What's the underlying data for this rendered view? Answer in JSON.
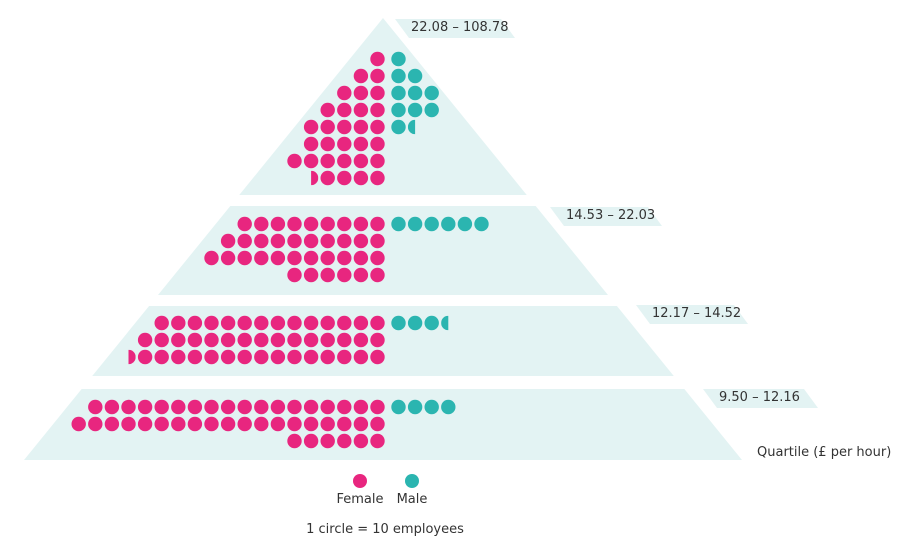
{
  "chart_data": {
    "type": "pictogram-pyramid",
    "axis_title": "Quartile (£ per hour)",
    "unit_note": "1 circle = 10 employees",
    "colors": {
      "female": "#e8267f",
      "male": "#2bb5b0",
      "band": "#e3f3f3",
      "label_bg": "#e3f3f3"
    },
    "legend": [
      {
        "key": "female",
        "label": "Female"
      },
      {
        "key": "male",
        "label": "Male"
      }
    ],
    "quartiles": [
      {
        "range": "22.08 – 108.78",
        "female_rows": [
          1,
          2,
          3,
          4,
          5,
          5,
          6,
          4.5
        ],
        "male_rows": [
          1,
          2,
          3,
          3,
          1.5
        ]
      },
      {
        "range": "14.53 – 22.03",
        "female_rows": [
          9,
          10,
          11,
          6
        ],
        "male_rows": [
          6
        ]
      },
      {
        "range": "12.17 – 14.52",
        "female_rows": [
          14,
          15,
          15.5
        ],
        "male_rows": [
          3.5
        ]
      },
      {
        "range": "9.50 – 12.16",
        "female_rows": [
          18,
          19,
          6
        ],
        "male_rows": [
          4
        ]
      }
    ]
  }
}
